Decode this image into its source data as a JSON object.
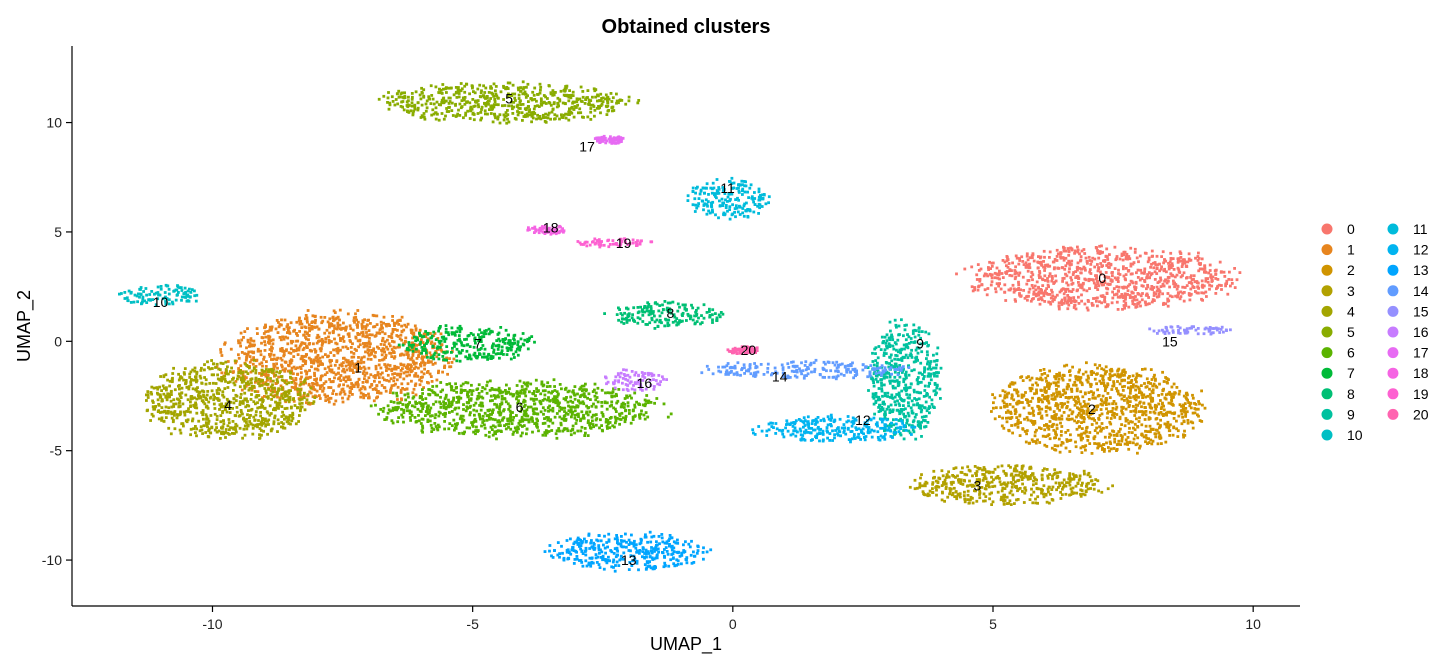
{
  "chart_data": {
    "type": "scatter",
    "title": "Obtained clusters",
    "xlabel": "UMAP_1",
    "ylabel": "UMAP_2",
    "xlim": [
      -12.7,
      10.9
    ],
    "ylim": [
      -12.1,
      13.5
    ],
    "x_ticks": [
      -10,
      -5,
      0,
      5,
      10
    ],
    "y_ticks": [
      -10,
      -5,
      0,
      5,
      10
    ],
    "grid": false,
    "legend_position": "right",
    "legend_columns": 2,
    "clusters": [
      {
        "id": "0",
        "label": "0",
        "color": "#F8766D",
        "center": [
          7.1,
          2.9
        ],
        "spread": [
          2.6,
          1.4
        ],
        "label_pos": [
          7.1,
          2.9
        ]
      },
      {
        "id": "1",
        "label": "1",
        "color": "#E7851E",
        "center": [
          -7.6,
          -0.8
        ],
        "spread": [
          2.2,
          2.1
        ],
        "label_pos": [
          -7.2,
          -1.2
        ]
      },
      {
        "id": "2",
        "label": "2",
        "color": "#D09400",
        "center": [
          7.0,
          -3.1
        ],
        "spread": [
          2.0,
          2.0
        ],
        "label_pos": [
          6.9,
          -3.1
        ]
      },
      {
        "id": "3",
        "label": "3",
        "color": "#B2A100",
        "center": [
          5.3,
          -6.6
        ],
        "spread": [
          1.9,
          0.9
        ],
        "label_pos": [
          4.7,
          -6.6
        ]
      },
      {
        "id": "4",
        "label": "4",
        "color": "#A3A500",
        "center": [
          -9.7,
          -2.7
        ],
        "spread": [
          1.6,
          1.8
        ],
        "label_pos": [
          -9.7,
          -2.9
        ]
      },
      {
        "id": "5",
        "label": "5",
        "color": "#89AC00",
        "center": [
          -4.4,
          10.9
        ],
        "spread": [
          2.5,
          0.9
        ],
        "label_pos": [
          -4.3,
          11.1
        ]
      },
      {
        "id": "6",
        "label": "6",
        "color": "#5BB300",
        "center": [
          -4.1,
          -3.1
        ],
        "spread": [
          2.7,
          1.3
        ],
        "label_pos": [
          -4.1,
          -3.0
        ]
      },
      {
        "id": "7",
        "label": "7",
        "color": "#00BA38",
        "center": [
          -5.1,
          -0.1
        ],
        "spread": [
          1.3,
          0.8
        ],
        "label_pos": [
          -4.9,
          -0.1
        ]
      },
      {
        "id": "8",
        "label": "8",
        "color": "#00BF74",
        "center": [
          -1.3,
          1.2
        ],
        "spread": [
          1.1,
          0.6
        ],
        "label_pos": [
          -1.2,
          1.3
        ]
      },
      {
        "id": "9",
        "label": "9",
        "color": "#00C19F",
        "center": [
          3.3,
          -1.8
        ],
        "spread": [
          0.7,
          2.7
        ],
        "label_pos": [
          3.6,
          -0.1
        ]
      },
      {
        "id": "10",
        "label": "10",
        "color": "#00BFC4",
        "center": [
          -11.0,
          2.1
        ],
        "spread": [
          0.8,
          0.5
        ],
        "label_pos": [
          -11.0,
          1.8
        ]
      },
      {
        "id": "11",
        "label": "11",
        "color": "#00BBDB",
        "center": [
          -0.1,
          6.5
        ],
        "spread": [
          0.8,
          0.9
        ],
        "label_pos": [
          -0.1,
          7.0
        ]
      },
      {
        "id": "12",
        "label": "12",
        "color": "#00B4F0",
        "center": [
          2.0,
          -4.0
        ],
        "spread": [
          1.6,
          0.6
        ],
        "label_pos": [
          2.5,
          -3.6
        ]
      },
      {
        "id": "13",
        "label": "13",
        "color": "#00A5FF",
        "center": [
          -2.0,
          -9.6
        ],
        "spread": [
          1.5,
          0.9
        ],
        "label_pos": [
          -2.0,
          -10.0
        ]
      },
      {
        "id": "14",
        "label": "14",
        "color": "#619CFF",
        "center": [
          1.4,
          -1.3
        ],
        "spread": [
          2.0,
          0.4
        ],
        "label_pos": [
          0.9,
          -1.6
        ]
      },
      {
        "id": "15",
        "label": "15",
        "color": "#9590FF",
        "center": [
          8.8,
          0.5
        ],
        "spread": [
          0.8,
          0.2
        ],
        "label_pos": [
          8.4,
          0.0
        ]
      },
      {
        "id": "16",
        "label": "16",
        "color": "#C77CFF",
        "center": [
          -1.9,
          -1.8
        ],
        "spread": [
          0.6,
          0.5
        ],
        "label_pos": [
          -1.7,
          -1.9
        ]
      },
      {
        "id": "17",
        "label": "17",
        "color": "#E76BF3",
        "center": [
          -2.4,
          9.2
        ],
        "spread": [
          0.3,
          0.2
        ],
        "label_pos": [
          -2.8,
          8.9
        ]
      },
      {
        "id": "18",
        "label": "18",
        "color": "#F564E3",
        "center": [
          -3.6,
          5.1
        ],
        "spread": [
          0.4,
          0.2
        ],
        "label_pos": [
          -3.5,
          5.2
        ]
      },
      {
        "id": "19",
        "label": "19",
        "color": "#FD61D1",
        "center": [
          -2.3,
          4.5
        ],
        "spread": [
          0.8,
          0.2
        ],
        "label_pos": [
          -2.1,
          4.5
        ]
      },
      {
        "id": "20",
        "label": "20",
        "color": "#FF64B0",
        "center": [
          0.2,
          -0.4
        ],
        "spread": [
          0.3,
          0.2
        ],
        "label_pos": [
          0.3,
          -0.4
        ]
      }
    ]
  }
}
